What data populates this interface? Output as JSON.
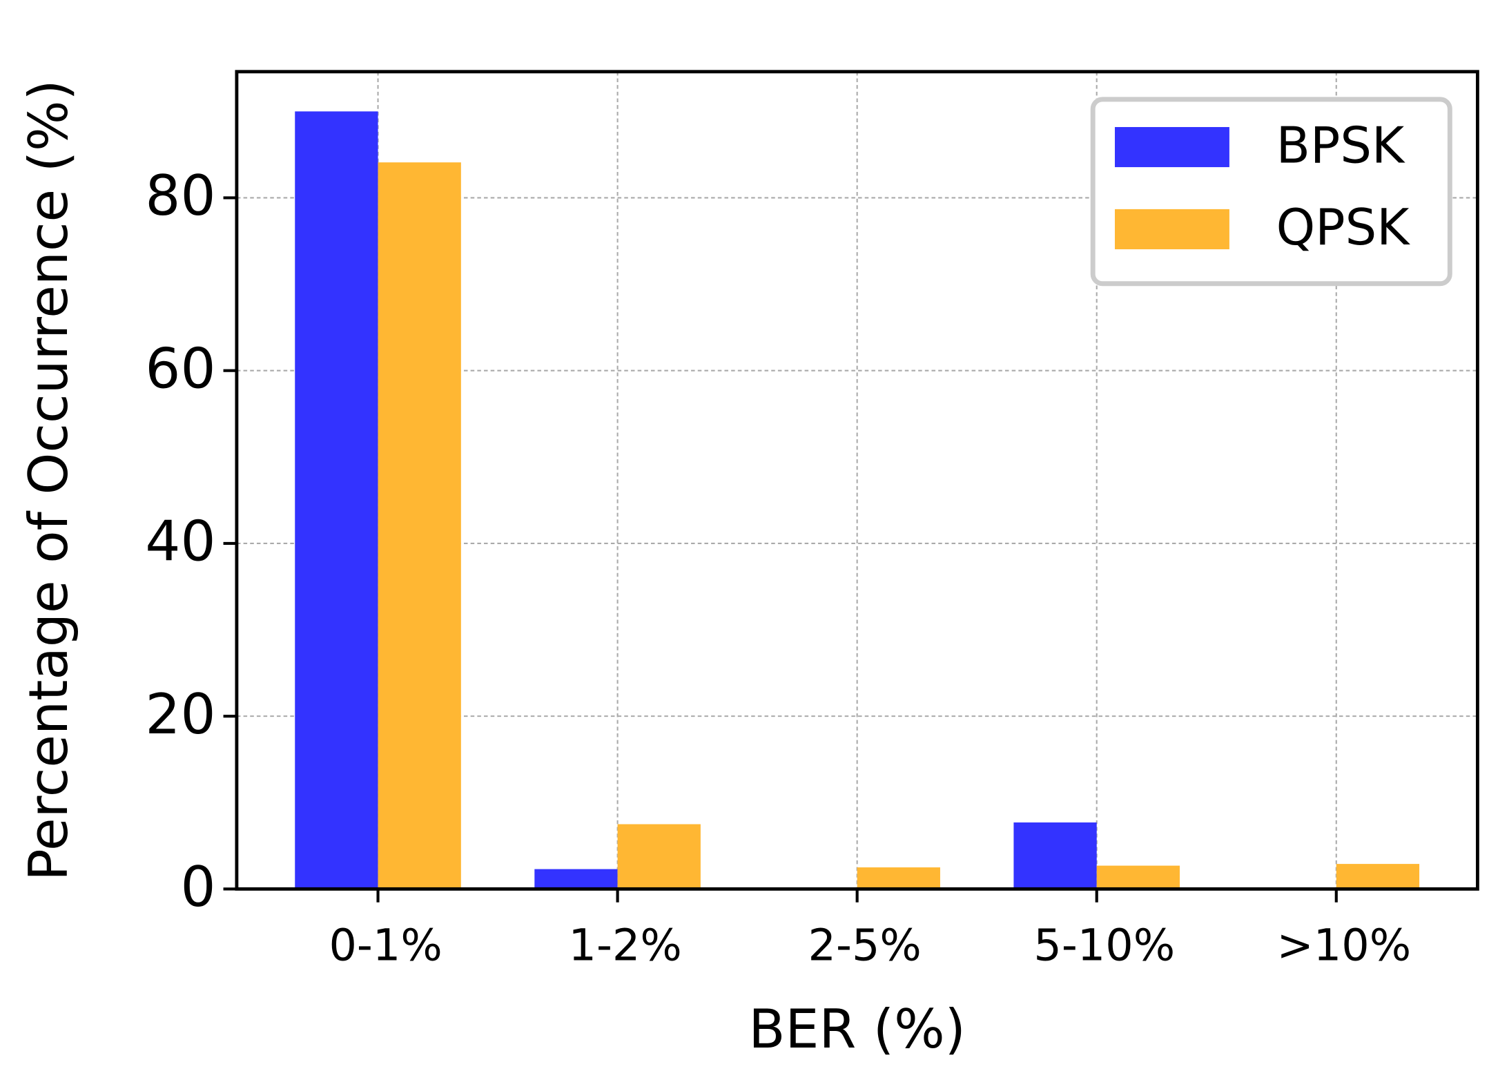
{
  "chart_data": {
    "type": "bar",
    "x_label": "BER (%)",
    "y_label": "Percentage of Occurrence (%)",
    "categories": [
      "0-1%",
      "1-2%",
      "2-5%",
      "5-10%",
      ">10%"
    ],
    "series": [
      {
        "name": "BPSK",
        "color": "#3333ff",
        "values": [
          90,
          2.3,
          0,
          7.7,
          0
        ]
      },
      {
        "name": "QPSK",
        "color": "#ffb733",
        "values": [
          84.1,
          7.5,
          2.5,
          2.7,
          2.9
        ]
      }
    ],
    "ylim": [
      0,
      94.6
    ],
    "yticks": [
      0,
      20,
      40,
      60,
      80
    ],
    "grid": true,
    "legend": "upper right"
  }
}
